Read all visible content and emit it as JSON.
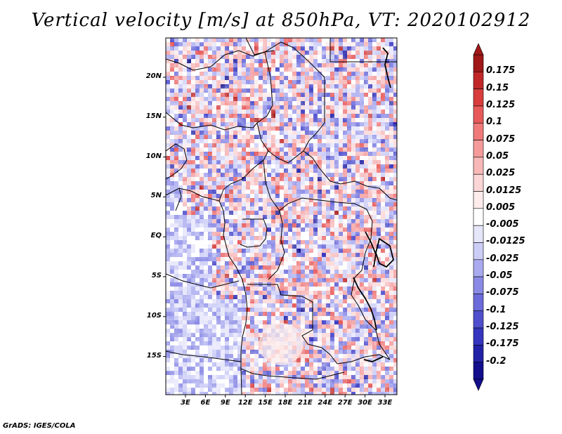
{
  "title": "Vertical velocity [m/s] at 850hPa, VT: 2020102912",
  "credit": "GrADS: IGES/COLA",
  "map": {
    "lat_ticks": [
      "20N",
      "15N",
      "10N",
      "5N",
      "EQ",
      "5S",
      "10S",
      "15S"
    ],
    "lon_ticks": [
      "3E",
      "6E",
      "9E",
      "12E",
      "15E",
      "18E",
      "21E",
      "24E",
      "27E",
      "30E",
      "33E"
    ]
  },
  "colorbar": {
    "labels": [
      "0.175",
      "0.15",
      "0.125",
      "0.1",
      "0.075",
      "0.05",
      "0.025",
      "0.0125",
      "0.005",
      "-0.005",
      "-0.0125",
      "-0.025",
      "-0.05",
      "-0.075",
      "-0.1",
      "-0.125",
      "-0.175",
      "-0.2"
    ],
    "colors": [
      "#a01818",
      "#c02828",
      "#d83c3c",
      "#e85a5a",
      "#f07a7a",
      "#f59a9a",
      "#f8b8b8",
      "#fcd6d6",
      "#fdeceb",
      "#ffffff",
      "#e6e6fb",
      "#cccdf6",
      "#a9aaef",
      "#8a8ae6",
      "#6b6bdb",
      "#4f4fce",
      "#3535bf",
      "#2222a8",
      "#120e8c"
    ]
  },
  "colors": {
    "positive": "#e2584f",
    "negative": "#6f6ff0",
    "ocean": "#b9bdf2"
  }
}
